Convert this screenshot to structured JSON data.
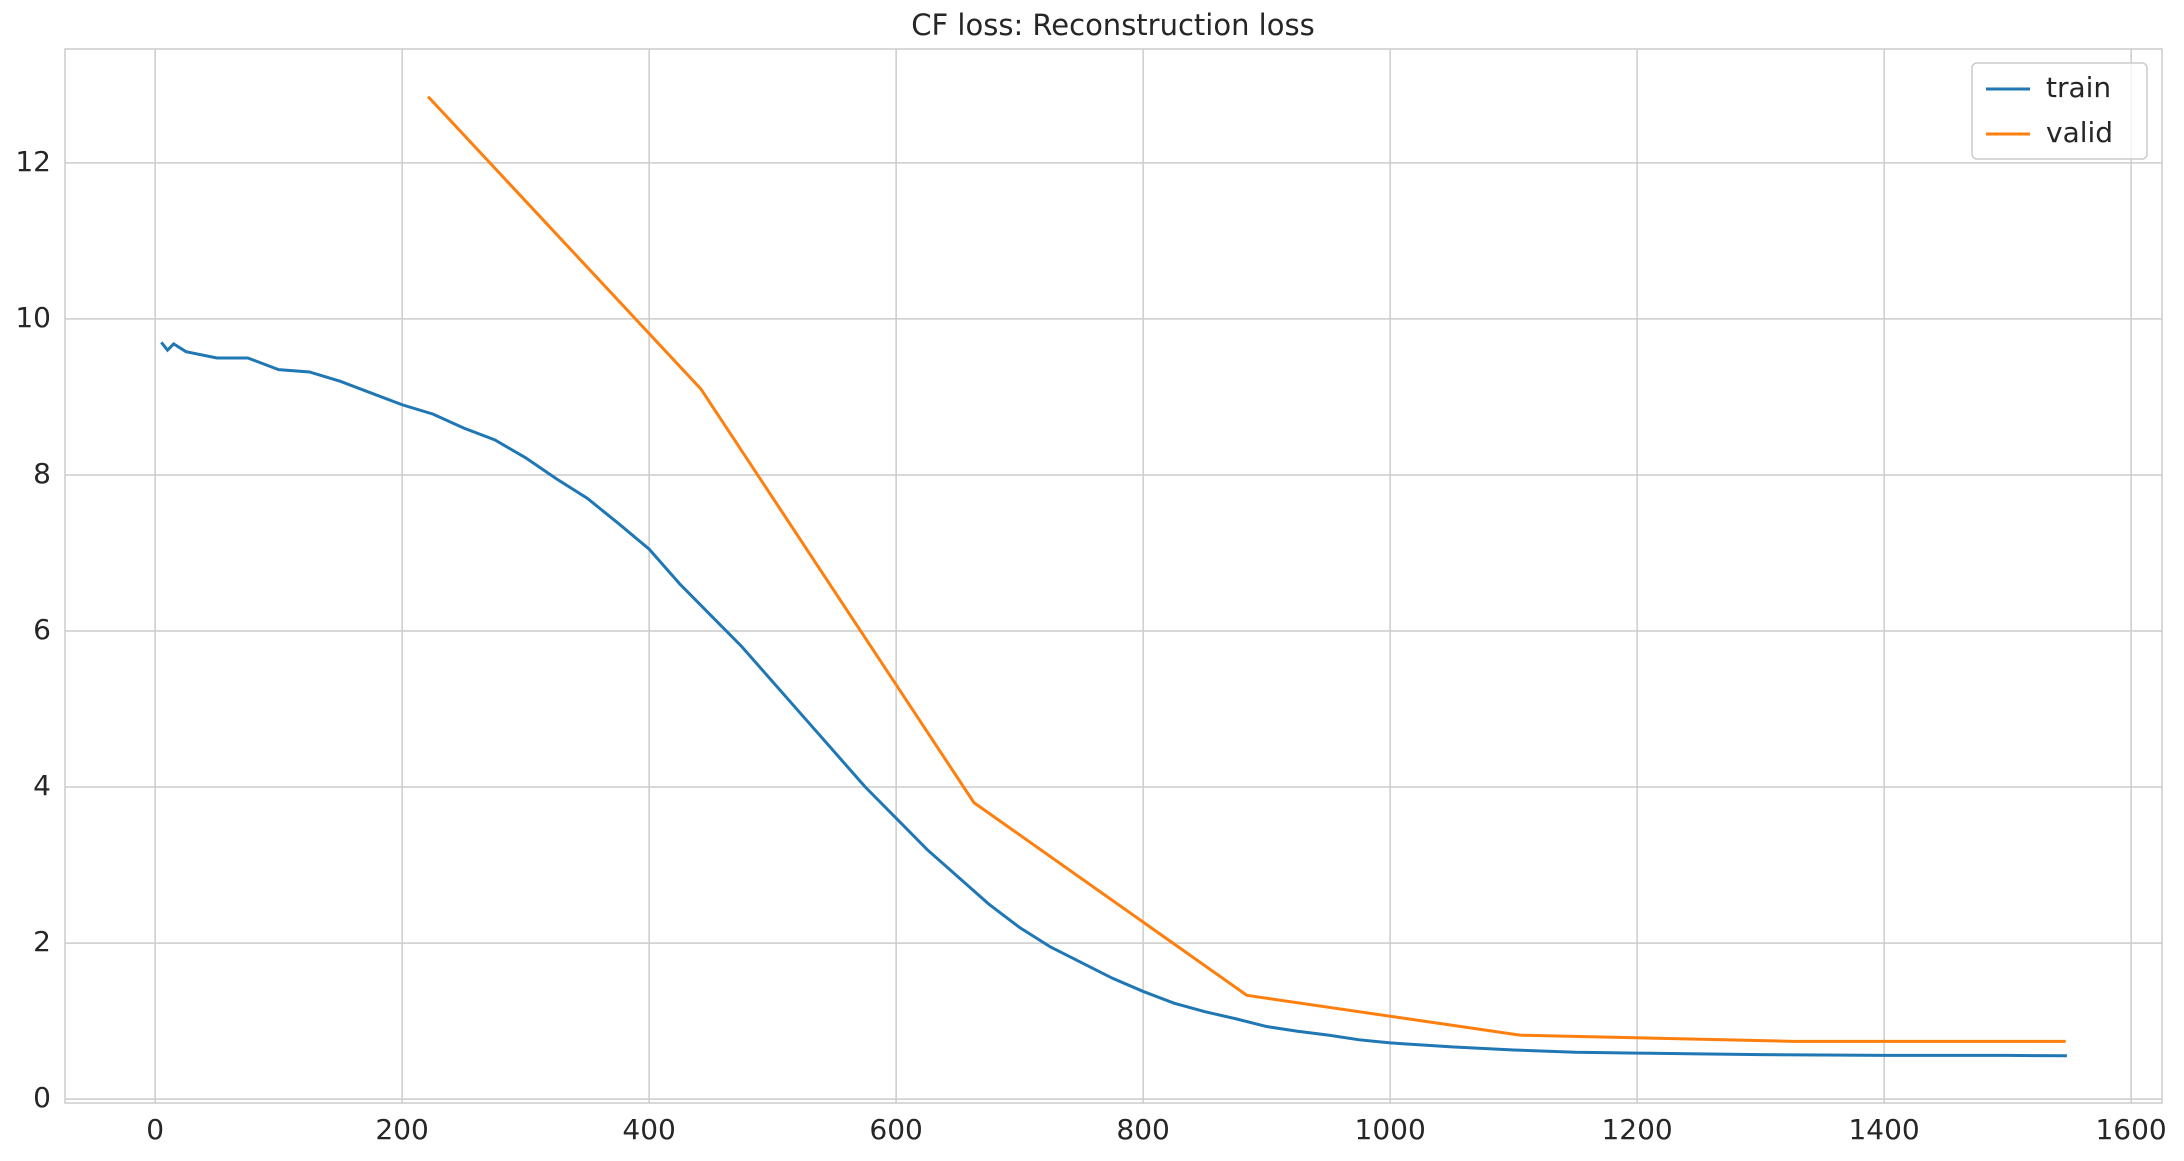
{
  "chart_data": {
    "type": "line",
    "title": "CF loss: Reconstruction loss",
    "series": [
      {
        "name": "train",
        "color": "#1f77b4",
        "x": [
          5,
          10,
          15,
          25,
          50,
          75,
          100,
          125,
          150,
          175,
          200,
          225,
          250,
          275,
          300,
          325,
          350,
          375,
          400,
          425,
          450,
          475,
          500,
          525,
          550,
          575,
          600,
          625,
          650,
          675,
          700,
          725,
          750,
          775,
          800,
          825,
          850,
          875,
          900,
          925,
          950,
          975,
          1000,
          1050,
          1100,
          1150,
          1200,
          1250,
          1300,
          1350,
          1400,
          1450,
          1500,
          1548
        ],
        "values": [
          9.7,
          9.6,
          9.68,
          9.58,
          9.5,
          9.5,
          9.35,
          9.32,
          9.2,
          9.05,
          8.9,
          8.78,
          8.6,
          8.45,
          8.22,
          7.95,
          7.7,
          7.38,
          7.05,
          6.6,
          6.2,
          5.8,
          5.35,
          4.9,
          4.45,
          4.0,
          3.6,
          3.2,
          2.85,
          2.5,
          2.2,
          1.95,
          1.75,
          1.55,
          1.38,
          1.23,
          1.12,
          1.03,
          0.93,
          0.87,
          0.82,
          0.76,
          0.72,
          0.67,
          0.63,
          0.6,
          0.59,
          0.58,
          0.57,
          0.565,
          0.56,
          0.56,
          0.56,
          0.555
        ]
      },
      {
        "name": "valid",
        "color": "#ff7f0e",
        "x": [
          221,
          442,
          663,
          884,
          1105,
          1326,
          1547
        ],
        "values": [
          12.85,
          9.1,
          3.8,
          1.33,
          0.82,
          0.74,
          0.74
        ]
      }
    ],
    "xlim": [
      -73,
      1625
    ],
    "ylim": [
      -0.05,
      13.46
    ],
    "xticks": [
      0,
      200,
      400,
      600,
      800,
      1000,
      1200,
      1400,
      1600
    ],
    "yticks": [
      0,
      2,
      4,
      6,
      8,
      10,
      12
    ],
    "grid": true,
    "legend": "upper right"
  }
}
